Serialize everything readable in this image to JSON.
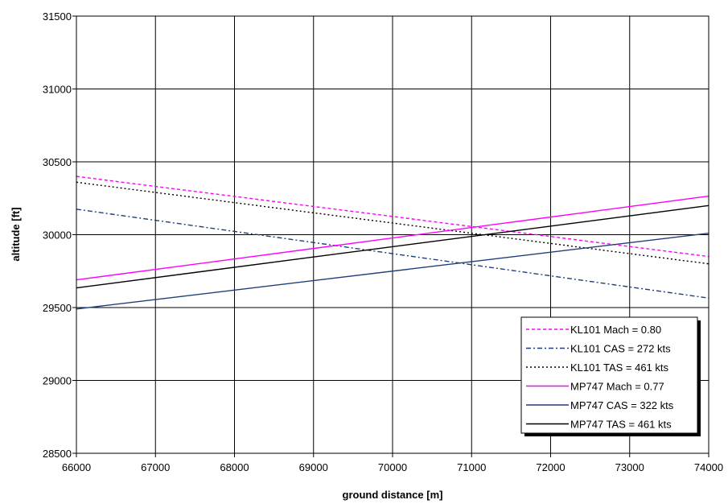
{
  "chart_data": {
    "type": "line",
    "title": "",
    "xlabel": "ground distance [m]",
    "ylabel": "altitude [ft]",
    "xlim": [
      66000,
      74000
    ],
    "ylim": [
      28500,
      31500
    ],
    "x_ticks": [
      "66000",
      "67000",
      "68000",
      "69000",
      "70000",
      "71000",
      "72000",
      "73000",
      "74000"
    ],
    "y_ticks": [
      "28500",
      "29000",
      "29500",
      "30000",
      "30500",
      "31000",
      "31500"
    ],
    "grid": true,
    "legend_position": "bottom-right",
    "series": [
      {
        "name": "KL101 Mach = 0.80",
        "color": "#ff00ff",
        "dash": "dashed",
        "x": [
          66000,
          74000
        ],
        "y": [
          30400,
          29850
        ]
      },
      {
        "name": "KL101 CAS = 272 kts",
        "color": "#1f3f7a",
        "dash": "dashdot",
        "x": [
          66000,
          74000
        ],
        "y": [
          30175,
          29565
        ]
      },
      {
        "name": "KL101 TAS = 461 kts",
        "color": "#000000",
        "dash": "dotted",
        "x": [
          66000,
          74000
        ],
        "y": [
          30360,
          29800
        ]
      },
      {
        "name": "MP747 Mach = 0.77",
        "color": "#ff00ff",
        "dash": "solid",
        "x": [
          66000,
          74000
        ],
        "y": [
          29690,
          30265
        ]
      },
      {
        "name": "MP747 CAS = 322 kts",
        "color": "#1f3f7a",
        "dash": "solid",
        "x": [
          66000,
          74000
        ],
        "y": [
          29490,
          30010
        ]
      },
      {
        "name": "MP747 TAS = 461 kts",
        "color": "#000000",
        "dash": "solid",
        "x": [
          66000,
          74000
        ],
        "y": [
          29635,
          30200
        ]
      }
    ]
  }
}
